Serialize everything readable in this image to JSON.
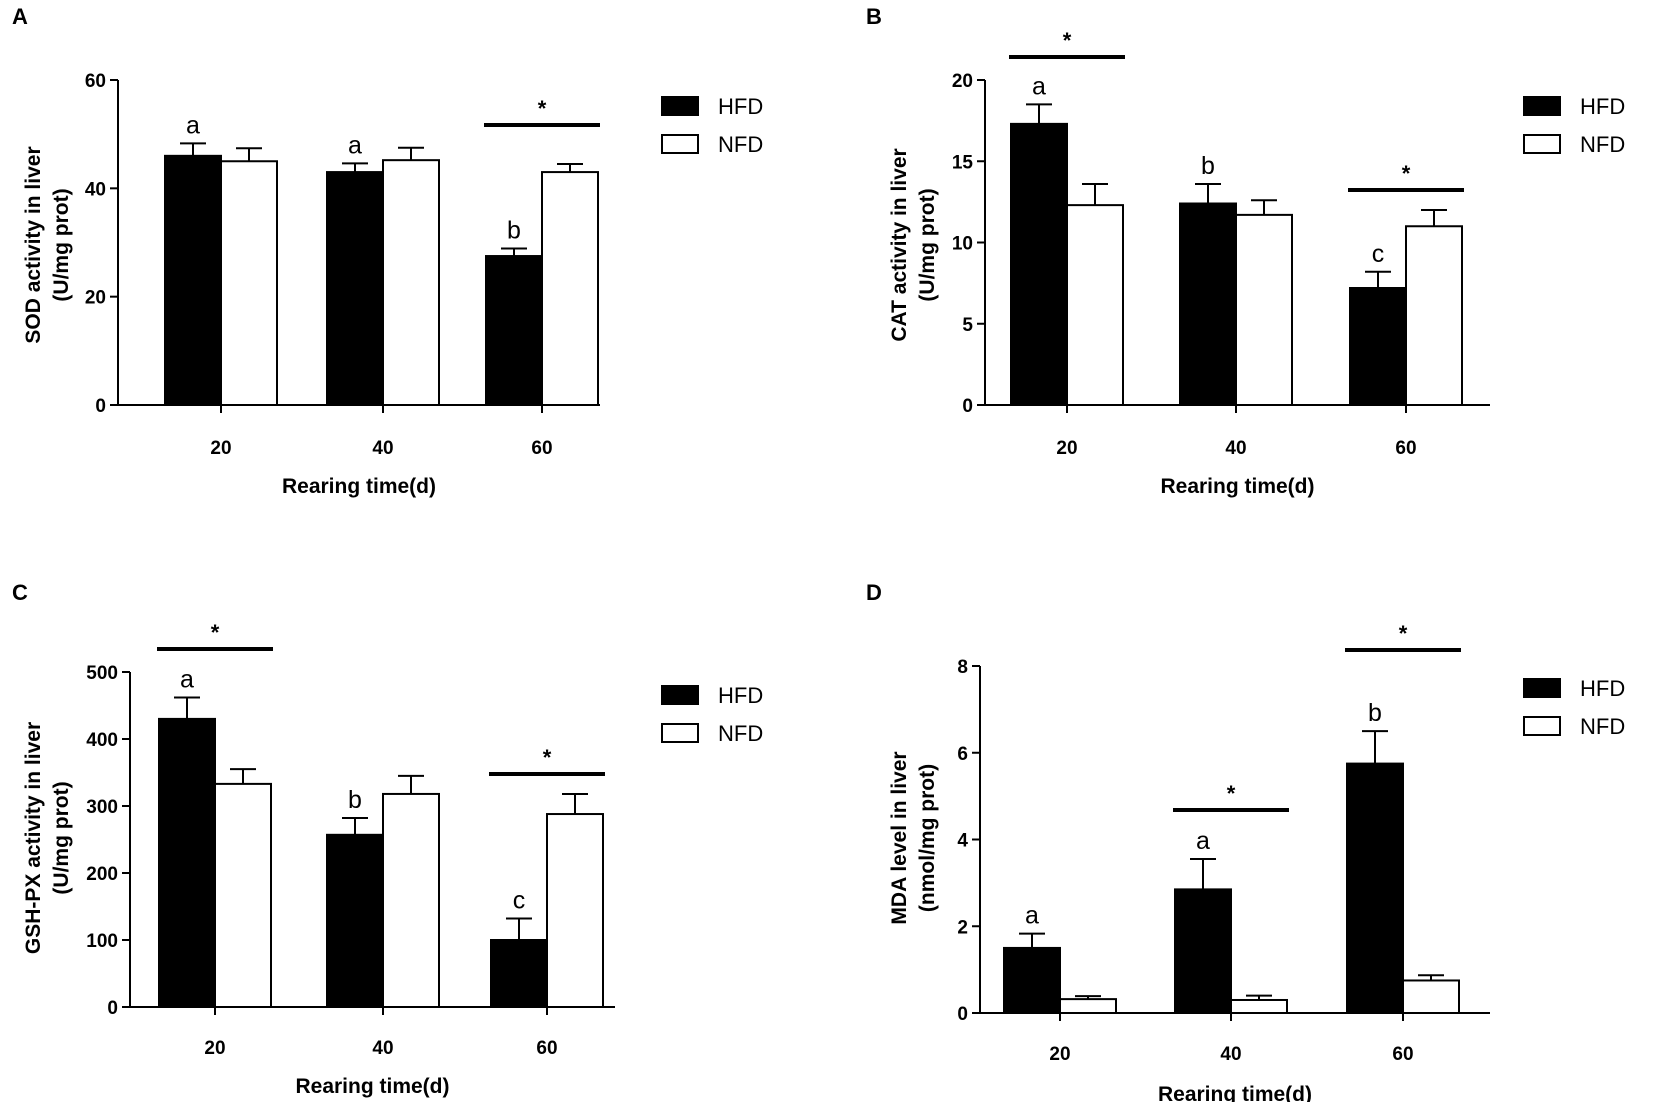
{
  "legend_colors": {
    "HFD": "#000000",
    "NFD": "#ffffff"
  },
  "chart_data": [
    {
      "panel": "A",
      "type": "bar",
      "categories": [
        "20",
        "40",
        "60"
      ],
      "xlabel": "Rearing time(d)",
      "ylabel": [
        "SOD activity in liver",
        "(U/mg prot)"
      ],
      "ylim": [
        0,
        60
      ],
      "yticks": [
        0,
        20,
        40,
        60
      ],
      "series": [
        {
          "name": "HFD",
          "values": [
            46,
            43,
            27.5
          ],
          "errors": [
            2.3,
            1.6,
            1.4
          ],
          "letters": [
            "a",
            "a",
            "b"
          ]
        },
        {
          "name": "NFD",
          "values": [
            45,
            45.2,
            43
          ],
          "errors": [
            2.4,
            2.3,
            1.5
          ]
        }
      ],
      "significance": [
        {
          "category": "60",
          "label": "*"
        }
      ],
      "legend": [
        "HFD",
        "NFD"
      ]
    },
    {
      "panel": "B",
      "type": "bar",
      "categories": [
        "20",
        "40",
        "60"
      ],
      "xlabel": "Rearing time(d)",
      "ylabel": [
        "CAT activity in liver",
        "(U/mg prot)"
      ],
      "ylim": [
        0,
        20
      ],
      "yticks": [
        0,
        5,
        10,
        15,
        20
      ],
      "series": [
        {
          "name": "HFD",
          "values": [
            17.3,
            12.4,
            7.2
          ],
          "errors": [
            1.2,
            1.2,
            1.0
          ],
          "letters": [
            "a",
            "b",
            "c"
          ]
        },
        {
          "name": "NFD",
          "values": [
            12.3,
            11.7,
            11.0
          ],
          "errors": [
            1.3,
            0.9,
            1.0
          ]
        }
      ],
      "significance": [
        {
          "category": "20",
          "label": "*"
        },
        {
          "category": "60",
          "label": "*"
        }
      ],
      "legend": [
        "HFD",
        "NFD"
      ]
    },
    {
      "panel": "C",
      "type": "bar",
      "categories": [
        "20",
        "40",
        "60"
      ],
      "xlabel": "Rearing time(d)",
      "ylabel": [
        "GSH-PX activity in liver",
        "(U/mg prot)"
      ],
      "ylim": [
        0,
        500
      ],
      "yticks": [
        0,
        100,
        200,
        300,
        400,
        500
      ],
      "series": [
        {
          "name": "HFD",
          "values": [
            430,
            257,
            100
          ],
          "errors": [
            32,
            25,
            32
          ],
          "letters": [
            "a",
            "b",
            "c"
          ]
        },
        {
          "name": "NFD",
          "values": [
            333,
            318,
            288
          ],
          "errors": [
            22,
            27,
            30
          ]
        }
      ],
      "significance": [
        {
          "category": "20",
          "label": "*"
        },
        {
          "category": "60",
          "label": "*"
        }
      ],
      "legend": [
        "HFD",
        "NFD"
      ]
    },
    {
      "panel": "D",
      "type": "bar",
      "categories": [
        "20",
        "40",
        "60"
      ],
      "xlabel": "Rearing time(d)",
      "ylabel": [
        "MDA level in liver",
        "(nmol/mg prot)"
      ],
      "ylim": [
        0,
        8
      ],
      "yticks": [
        0,
        2,
        4,
        6,
        8
      ],
      "series": [
        {
          "name": "HFD",
          "values": [
            1.5,
            2.85,
            5.75
          ],
          "errors": [
            0.33,
            0.7,
            0.75
          ],
          "letters": [
            "a",
            "a",
            "b"
          ]
        },
        {
          "name": "NFD",
          "values": [
            0.32,
            0.3,
            0.75
          ],
          "errors": [
            0.07,
            0.1,
            0.12
          ]
        }
      ],
      "significance": [
        {
          "category": "40",
          "label": "*"
        },
        {
          "category": "60",
          "label": "*"
        }
      ],
      "legend": [
        "HFD",
        "NFD"
      ]
    }
  ]
}
